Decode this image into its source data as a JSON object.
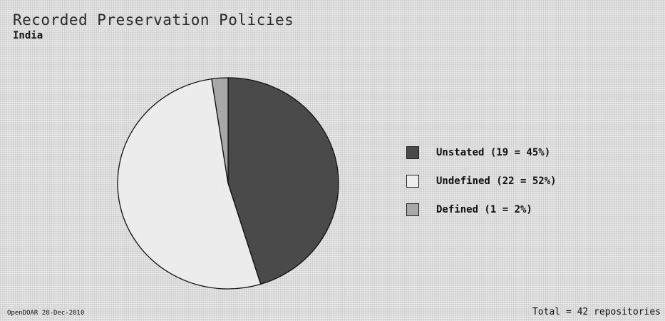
{
  "chart_data": {
    "type": "pie",
    "title": "Recorded Preservation Policies",
    "subtitle": "India",
    "slices": [
      {
        "label": "Unstated (19 = 45%)",
        "value": 19,
        "color": "#4a4a4a"
      },
      {
        "label": "Undefined (22 = 52%)",
        "value": 22,
        "color": "#ececec"
      },
      {
        "label": "Defined (1 = 2%)",
        "value": 1,
        "color": "#a8a8a8"
      }
    ],
    "legend_position": "right"
  },
  "footer": {
    "source": "OpenDOAR 28-Dec-2010",
    "total": "Total = 42 repositories"
  }
}
